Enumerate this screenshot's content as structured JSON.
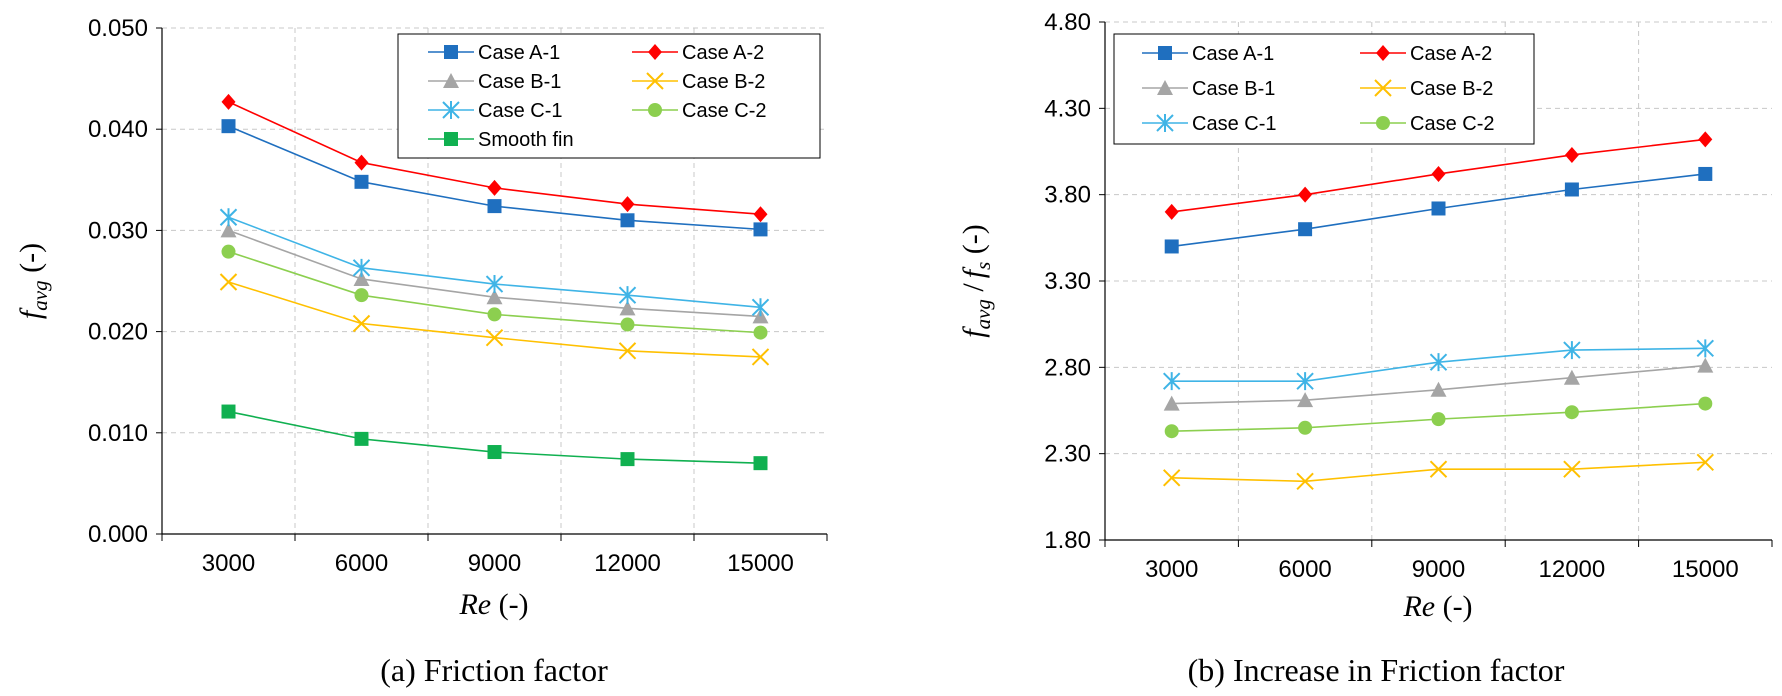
{
  "chart_data": [
    {
      "type": "line",
      "id": "a",
      "caption": "(a) Friction factor",
      "xlabel_italic": "Re",
      "xlabel_rest": " (-)",
      "ylabel_main": "f",
      "ylabel_sub": "avg",
      "ylabel_rest": " (-)",
      "categories": [
        "3000",
        "6000",
        "9000",
        "12000",
        "15000"
      ],
      "ylim": [
        0,
        0.05
      ],
      "yticks": [
        "0.000",
        "0.010",
        "0.020",
        "0.030",
        "0.040",
        "0.050"
      ],
      "grid": true,
      "legend_columns": 2,
      "legend_position": "top-right",
      "series": [
        {
          "name": "Case A-1",
          "color": "#1f6fbf",
          "marker": "square",
          "values": [
            0.0403,
            0.0348,
            0.0324,
            0.031,
            0.0301
          ]
        },
        {
          "name": "Case A-2",
          "color": "#ff0000",
          "marker": "diamond",
          "values": [
            0.0427,
            0.0367,
            0.0342,
            0.0326,
            0.0316
          ]
        },
        {
          "name": "Case B-1",
          "color": "#a5a5a5",
          "marker": "triangle",
          "values": [
            0.03,
            0.0252,
            0.0234,
            0.0223,
            0.0215
          ]
        },
        {
          "name": "Case B-2",
          "color": "#ffc000",
          "marker": "x",
          "values": [
            0.0249,
            0.0208,
            0.0194,
            0.0181,
            0.0175
          ]
        },
        {
          "name": "Case C-1",
          "color": "#3fb4e6",
          "marker": "asterisk",
          "values": [
            0.0313,
            0.0263,
            0.0247,
            0.0236,
            0.0224
          ]
        },
        {
          "name": "Case C-2",
          "color": "#8ccf4f",
          "marker": "circle",
          "values": [
            0.0279,
            0.0236,
            0.0217,
            0.0207,
            0.0199
          ]
        },
        {
          "name": "Smooth fin",
          "color": "#10b050",
          "marker": "square",
          "values": [
            0.0121,
            0.0094,
            0.0081,
            0.0074,
            0.007
          ]
        }
      ]
    },
    {
      "type": "line",
      "id": "b",
      "caption": "(b) Increase in Friction factor",
      "xlabel_italic": "Re",
      "xlabel_rest": " (-)",
      "ylabel_main": "f",
      "ylabel_sub": "avg",
      "ylabel_mid": " /",
      "ylabel_main2": "f",
      "ylabel_sub2": "s",
      "ylabel_rest": " (-)",
      "categories": [
        "3000",
        "6000",
        "9000",
        "12000",
        "15000"
      ],
      "ylim": [
        1.8,
        4.8
      ],
      "yticks": [
        "1.80",
        "2.30",
        "2.80",
        "3.30",
        "3.80",
        "4.30",
        "4.80"
      ],
      "grid": true,
      "legend_columns": 2,
      "legend_position": "top-left",
      "series": [
        {
          "name": "Case A-1",
          "color": "#1f6fbf",
          "marker": "square",
          "values": [
            3.5,
            3.6,
            3.72,
            3.83,
            3.92
          ]
        },
        {
          "name": "Case A-2",
          "color": "#ff0000",
          "marker": "diamond",
          "values": [
            3.7,
            3.8,
            3.92,
            4.03,
            4.12
          ]
        },
        {
          "name": "Case B-1",
          "color": "#a5a5a5",
          "marker": "triangle",
          "values": [
            2.59,
            2.61,
            2.67,
            2.74,
            2.81
          ]
        },
        {
          "name": "Case B-2",
          "color": "#ffc000",
          "marker": "x",
          "values": [
            2.16,
            2.14,
            2.21,
            2.21,
            2.25
          ]
        },
        {
          "name": "Case C-1",
          "color": "#3fb4e6",
          "marker": "asterisk",
          "values": [
            2.72,
            2.72,
            2.83,
            2.9,
            2.91
          ]
        },
        {
          "name": "Case C-2",
          "color": "#8ccf4f",
          "marker": "circle",
          "values": [
            2.43,
            2.45,
            2.5,
            2.54,
            2.59
          ]
        }
      ]
    }
  ]
}
